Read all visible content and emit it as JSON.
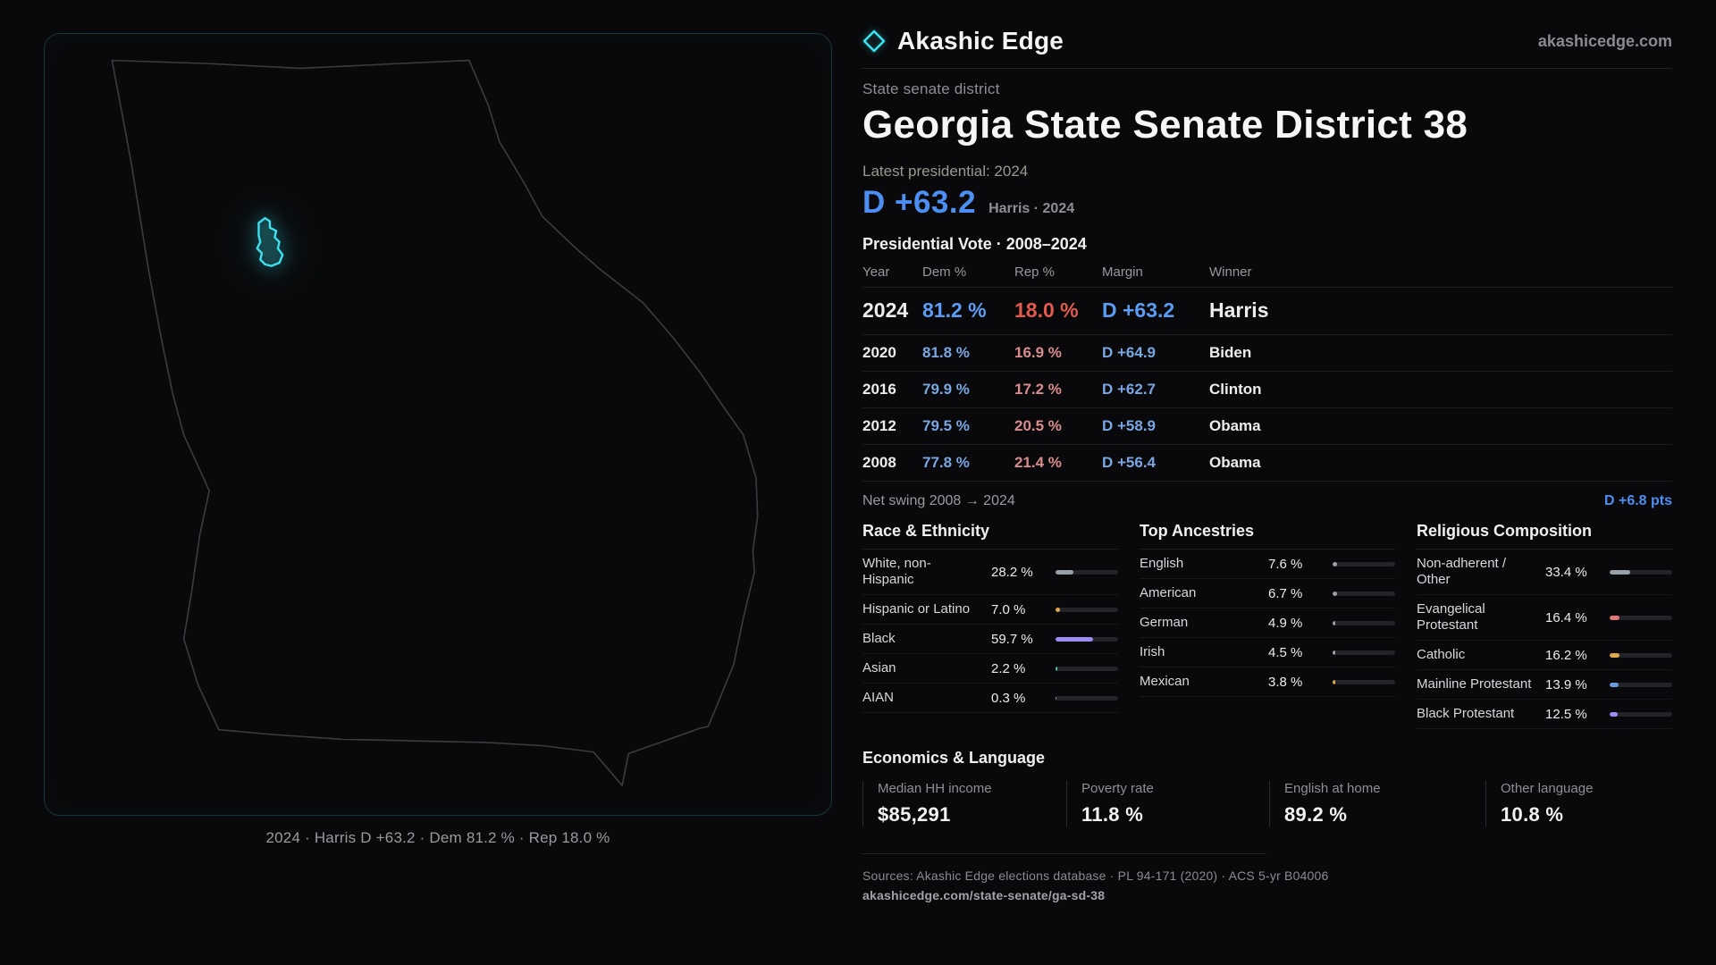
{
  "brand": {
    "name": "Akashic Edge",
    "domain": "akashicedge.com"
  },
  "page": {
    "kicker": "State senate district",
    "title": "Georgia State Senate District 38"
  },
  "headline": {
    "label": "Latest presidential: 2024",
    "margin": "D +63.2",
    "context": "Harris · 2024"
  },
  "map": {
    "state_name": "Georgia",
    "district_color": "#3ee0f0",
    "caption": "2024 · Harris D +63.2 · Dem 81.2 % · Rep 18.0 %"
  },
  "vote_table": {
    "title": "Presidential Vote · 2008–2024",
    "columns": [
      "Year",
      "Dem %",
      "Rep %",
      "Margin",
      "Winner"
    ],
    "rows": [
      {
        "year": "2024",
        "dem": "81.2 %",
        "rep": "18.0 %",
        "margin": "D +63.2",
        "winner": "Harris"
      },
      {
        "year": "2020",
        "dem": "81.8 %",
        "rep": "16.9 %",
        "margin": "D +64.9",
        "winner": "Biden"
      },
      {
        "year": "2016",
        "dem": "79.9 %",
        "rep": "17.2 %",
        "margin": "D +62.7",
        "winner": "Clinton"
      },
      {
        "year": "2012",
        "dem": "79.5 %",
        "rep": "20.5 %",
        "margin": "D +58.9",
        "winner": "Obama"
      },
      {
        "year": "2008",
        "dem": "77.8 %",
        "rep": "21.4 %",
        "margin": "D +56.4",
        "winner": "Obama"
      }
    ]
  },
  "swing": {
    "label": "Net swing 2008 → 2024",
    "value": "D +6.8 pts"
  },
  "demographics": [
    {
      "title": "Race & Ethnicity",
      "items": [
        {
          "label": "White, non-Hispanic",
          "value": "28.2 %",
          "pct": 28.2,
          "color": "#9aa0a8"
        },
        {
          "label": "Hispanic or Latino",
          "value": "7.0 %",
          "pct": 7.0,
          "color": "#e0a84e"
        },
        {
          "label": "Black",
          "value": "59.7 %",
          "pct": 59.7,
          "color": "#9e8cf2"
        },
        {
          "label": "Asian",
          "value": "2.2 %",
          "pct": 2.2,
          "color": "#4ecfb0"
        },
        {
          "label": "AIAN",
          "value": "0.3 %",
          "pct": 0.3,
          "color": "#9aa0a8"
        }
      ]
    },
    {
      "title": "Top Ancestries",
      "items": [
        {
          "label": "English",
          "value": "7.6 %",
          "pct": 7.6,
          "color": "#9aa0a8"
        },
        {
          "label": "American",
          "value": "6.7 %",
          "pct": 6.7,
          "color": "#9aa0a8"
        },
        {
          "label": "German",
          "value": "4.9 %",
          "pct": 4.9,
          "color": "#9aa0a8"
        },
        {
          "label": "Irish",
          "value": "4.5 %",
          "pct": 4.5,
          "color": "#9aa0a8"
        },
        {
          "label": "Mexican",
          "value": "3.8 %",
          "pct": 3.8,
          "color": "#e0a84e"
        }
      ]
    },
    {
      "title": "Religious Composition",
      "items": [
        {
          "label": "Non-adherent / Other",
          "value": "33.4 %",
          "pct": 33.4,
          "color": "#9aa0a8"
        },
        {
          "label": "Evangelical Protestant",
          "value": "16.4 %",
          "pct": 16.4,
          "color": "#e07878"
        },
        {
          "label": "Catholic",
          "value": "16.2 %",
          "pct": 16.2,
          "color": "#e0a84e"
        },
        {
          "label": "Mainline Protestant",
          "value": "13.9 %",
          "pct": 13.9,
          "color": "#6b9be0"
        },
        {
          "label": "Black Protestant",
          "value": "12.5 %",
          "pct": 12.5,
          "color": "#9e8cf2"
        }
      ]
    }
  ],
  "economics": {
    "title": "Economics & Language",
    "stats": [
      {
        "label": "Median HH income",
        "value": "$85,291"
      },
      {
        "label": "Poverty rate",
        "value": "11.8 %"
      },
      {
        "label": "English at home",
        "value": "89.2 %"
      },
      {
        "label": "Other language",
        "value": "10.8 %"
      }
    ]
  },
  "footer": {
    "sources": "Sources: Akashic Edge elections database · PL 94-171 (2020) · ACS 5-yr B04006",
    "permalink": "akashicedge.com/state-senate/ga-sd-38"
  }
}
